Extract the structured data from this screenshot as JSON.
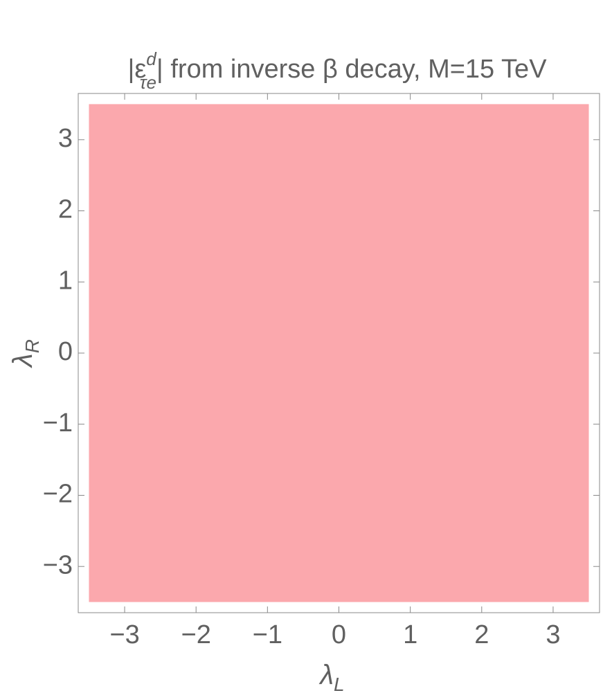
{
  "chart_data": {
    "type": "region",
    "title": {
      "prefix": "|ε",
      "superscript": "d",
      "subscript": "τe",
      "suffix": "| from inverse β decay, M=15 TeV"
    },
    "xlabel": {
      "symbol": "λ",
      "subscript": "L"
    },
    "ylabel": {
      "symbol": "λ",
      "subscript": "R"
    },
    "xlim": [
      -3.65,
      3.65
    ],
    "ylim": [
      -3.65,
      3.65
    ],
    "xticks": [
      {
        "value": -3,
        "label": "−3"
      },
      {
        "value": -2,
        "label": "−2"
      },
      {
        "value": -1,
        "label": "−1"
      },
      0,
      1,
      2,
      3
    ],
    "yticks": [
      {
        "value": -3,
        "label": "−3"
      },
      {
        "value": -2,
        "label": "−2"
      },
      {
        "value": -1,
        "label": "−1"
      },
      0,
      1,
      2,
      3
    ],
    "region": {
      "xrange": [
        -3.5,
        3.5
      ],
      "yrange": [
        -3.5,
        3.5
      ],
      "color": "#fba8ad"
    }
  }
}
